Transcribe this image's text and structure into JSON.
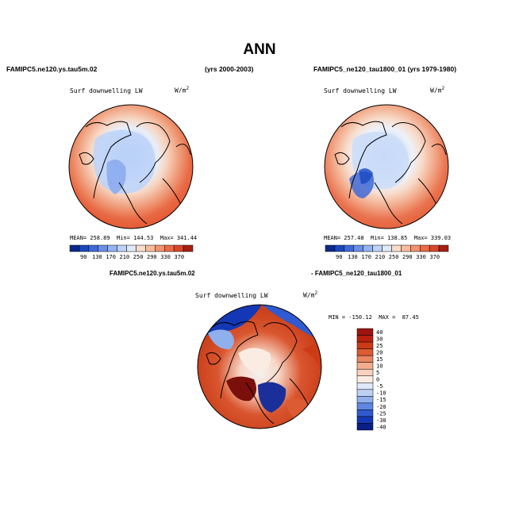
{
  "page": {
    "title": "ANN",
    "case_a": "FAMIPC5.ne120.ys.tau5m.02",
    "years_a": "(yrs 2000-2003)",
    "case_b": "FAMIPC5_ne120_tau1800_01 (yrs 1979-1980)"
  },
  "panel_a": {
    "variable": "Surf downwelling LW",
    "units": "W/m",
    "units_exp": "2",
    "stats": "MEAN= 258.89  Min= 144.53  Max= 341.44",
    "colorbar_labels": [
      "90",
      "130",
      "170",
      "210",
      "250",
      "290",
      "330",
      "370"
    ]
  },
  "panel_b": {
    "variable": "Surf downwelling LW",
    "units": "W/m",
    "units_exp": "2",
    "stats": "MEAN= 257.48  Min= 138.85  Max= 339.03",
    "colorbar_labels": [
      "90",
      "130",
      "170",
      "210",
      "250",
      "290",
      "330",
      "370"
    ]
  },
  "diff": {
    "header_a": "FAMIPC5.ne120.ys.tau5m.02",
    "header_b": "- FAMIPC5_ne120_tau1800_01",
    "variable": "Surf downwelling LW",
    "units": "W/m",
    "units_exp": "2",
    "stats": "MIN = -150.12  MAX =  87.45",
    "colorbar_labels": [
      "40",
      "30",
      "25",
      "20",
      "15",
      "10",
      "5",
      "0",
      "-5",
      "-10",
      "-15",
      "-20",
      "-25",
      "-30",
      "-40"
    ]
  },
  "colors": {
    "abs_scale": [
      "#0a2a8a",
      "#1a48c0",
      "#3f6ad6",
      "#6a8fe6",
      "#93b3f2",
      "#bdd2f8",
      "#dfe9fb",
      "#f9dccb",
      "#f7bc9c",
      "#f29370",
      "#ec6a45",
      "#d9472a",
      "#a81f14"
    ],
    "diff_scale": [
      "#9e1410",
      "#b8210f",
      "#cd3a16",
      "#dc5b33",
      "#ea8660",
      "#f3ad8e",
      "#f8d0bd",
      "#fbece3",
      "#dde8f8",
      "#bcd0f3",
      "#8fb0ec",
      "#5e87e2",
      "#2f5ad1",
      "#1438b5",
      "#0a1e86"
    ]
  }
}
